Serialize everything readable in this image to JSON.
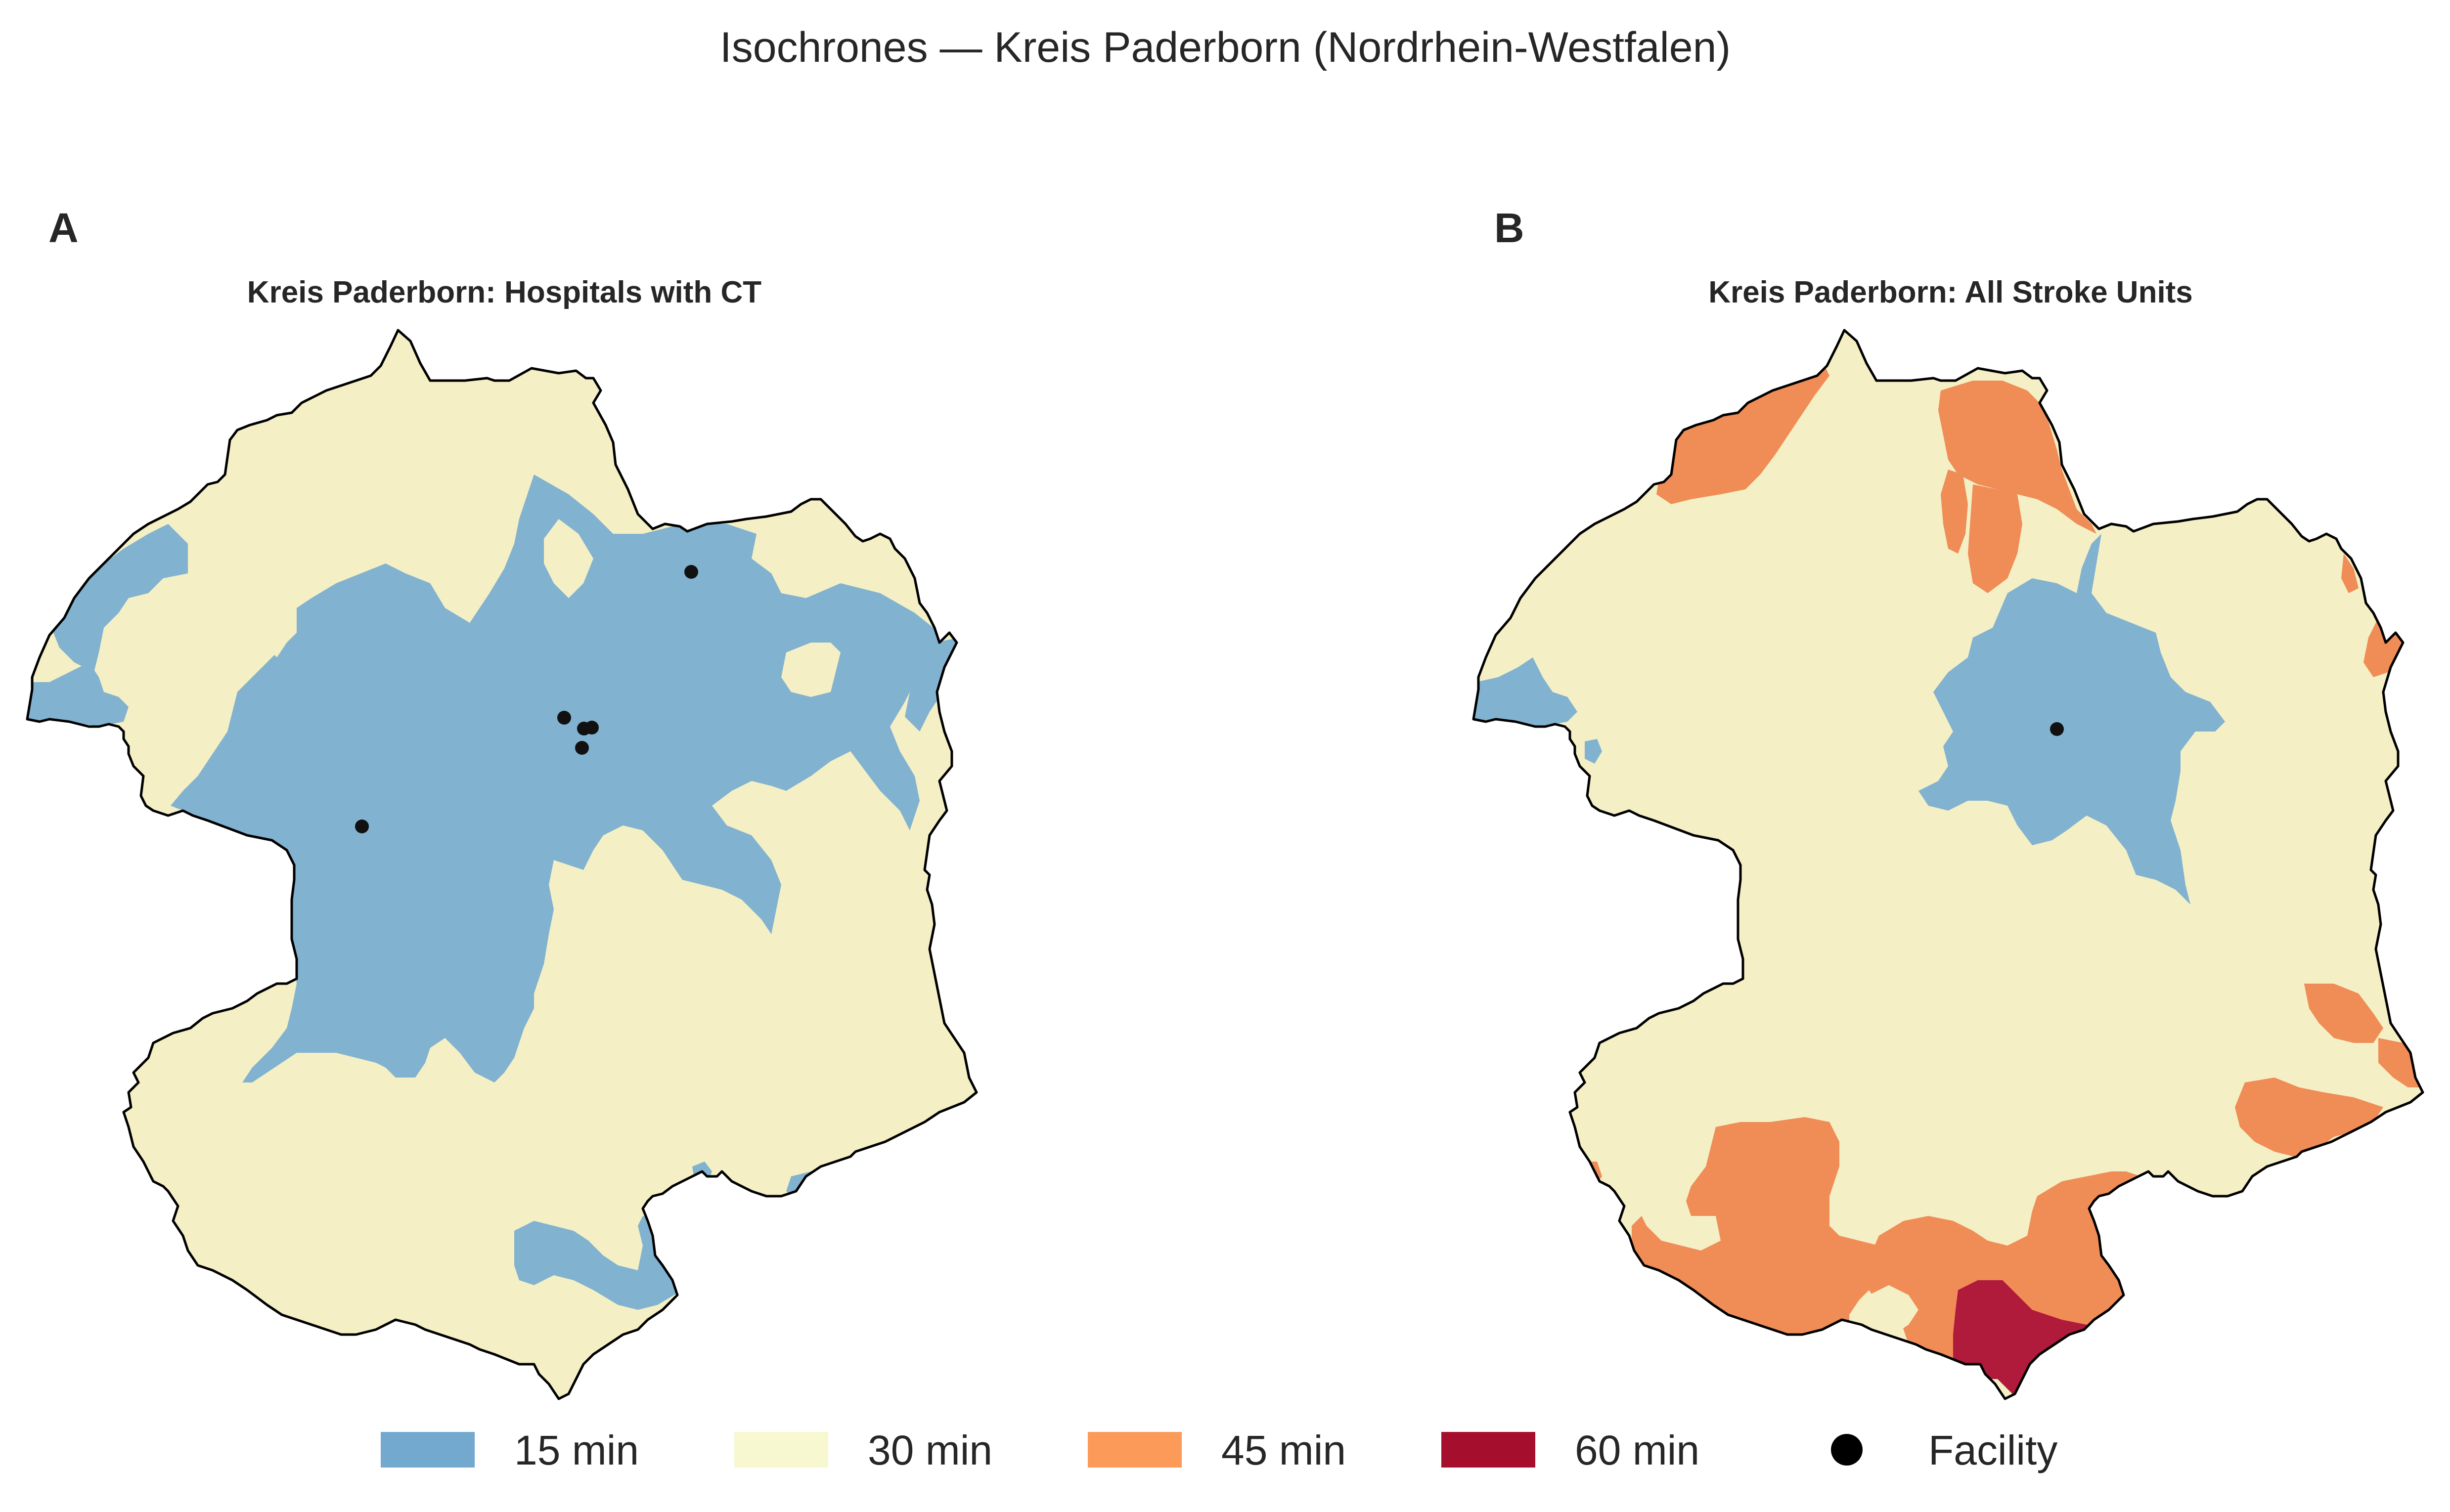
{
  "figure": {
    "title": "Isochrones — Kreis Paderborn (Nordrhein-Westfalen)"
  },
  "panels": [
    {
      "letter": "A",
      "title": "Kreis Paderborn: Hospitals with CT"
    },
    {
      "letter": "B",
      "title": "Kreis Paderborn: All Stroke Units"
    }
  ],
  "legend": {
    "items": [
      {
        "label": "15 min",
        "color": "#74a9cf",
        "icon": "blue-swatch"
      },
      {
        "label": "30 min",
        "color": "#f7f7d0",
        "icon": "cream-swatch"
      },
      {
        "label": "45 min",
        "color": "#fc9a5a",
        "icon": "orange-swatch"
      },
      {
        "label": "60 min",
        "color": "#a50f2d",
        "icon": "crimson-swatch"
      },
      {
        "label": "Facility",
        "color": "#000000",
        "icon": "black-dot-marker"
      }
    ]
  },
  "colors": {
    "zone_15_fill": "#81b2d0",
    "zone_30_fill": "#f4efc5",
    "zone_45_fill": "#f08c56",
    "zone_60_fill": "#b01a3b",
    "boundary": "#000000"
  }
}
